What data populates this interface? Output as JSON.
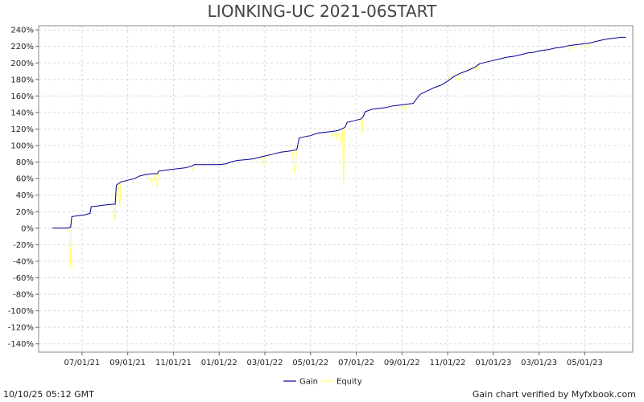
{
  "chart_data": {
    "type": "line",
    "title": "LIONKING-UC 2021-06START",
    "ylim": [
      -150,
      245
    ],
    "y_ticks": [
      240,
      220,
      200,
      180,
      160,
      140,
      120,
      100,
      80,
      60,
      40,
      20,
      0,
      -20,
      -40,
      -60,
      -80,
      -100,
      -120,
      -140
    ],
    "y_tick_suffix": "%",
    "x_ticks": [
      {
        "label": "07/01/21",
        "t": 1.0
      },
      {
        "label": "09/01/21",
        "t": 3.0
      },
      {
        "label": "11/01/21",
        "t": 5.0
      },
      {
        "label": "01/01/22",
        "t": 7.0
      },
      {
        "label": "03/01/22",
        "t": 9.0
      },
      {
        "label": "05/01/22",
        "t": 11.0
      },
      {
        "label": "07/01/22",
        "t": 13.0
      },
      {
        "label": "09/01/22",
        "t": 15.0
      },
      {
        "label": "11/01/22",
        "t": 17.0
      },
      {
        "label": "01/01/23",
        "t": 19.0
      },
      {
        "label": "03/01/23",
        "t": 21.0
      },
      {
        "label": "05/01/23",
        "t": 23.0
      }
    ],
    "grid": true,
    "legend_position": "bottom-center",
    "series": [
      {
        "name": "Gain",
        "color": "#0000aa",
        "points": [
          [
            -0.3,
            0
          ],
          [
            0.3,
            0
          ],
          [
            0.5,
            1
          ],
          [
            0.55,
            14
          ],
          [
            0.8,
            15
          ],
          [
            1.1,
            16
          ],
          [
            1.35,
            18
          ],
          [
            1.4,
            26
          ],
          [
            1.7,
            27
          ],
          [
            2.0,
            28
          ],
          [
            2.35,
            29
          ],
          [
            2.45,
            29
          ],
          [
            2.5,
            52
          ],
          [
            2.6,
            54
          ],
          [
            2.7,
            56
          ],
          [
            3.0,
            58
          ],
          [
            3.3,
            60
          ],
          [
            3.5,
            63
          ],
          [
            3.8,
            65
          ],
          [
            4.1,
            66
          ],
          [
            4.3,
            66
          ],
          [
            4.35,
            69
          ],
          [
            4.6,
            70
          ],
          [
            4.9,
            71
          ],
          [
            5.2,
            72
          ],
          [
            5.5,
            73
          ],
          [
            5.8,
            75
          ],
          [
            5.9,
            77
          ],
          [
            6.2,
            77
          ],
          [
            6.6,
            77
          ],
          [
            7.0,
            77
          ],
          [
            7.3,
            78
          ],
          [
            7.5,
            80
          ],
          [
            7.8,
            82
          ],
          [
            8.2,
            83
          ],
          [
            8.5,
            84
          ],
          [
            8.8,
            86
          ],
          [
            9.1,
            88
          ],
          [
            9.4,
            90
          ],
          [
            9.7,
            92
          ],
          [
            10.0,
            93
          ],
          [
            10.2,
            94
          ],
          [
            10.4,
            95
          ],
          [
            10.5,
            109
          ],
          [
            10.8,
            111
          ],
          [
            11.0,
            112
          ],
          [
            11.3,
            115
          ],
          [
            11.6,
            116
          ],
          [
            11.9,
            117
          ],
          [
            12.2,
            118
          ],
          [
            12.5,
            122
          ],
          [
            12.6,
            128
          ],
          [
            12.9,
            130
          ],
          [
            13.2,
            132
          ],
          [
            13.3,
            135
          ],
          [
            13.4,
            141
          ],
          [
            13.7,
            144
          ],
          [
            14.0,
            145
          ],
          [
            14.3,
            146
          ],
          [
            14.6,
            148
          ],
          [
            14.9,
            149
          ],
          [
            15.2,
            150
          ],
          [
            15.5,
            151
          ],
          [
            15.6,
            155
          ],
          [
            15.8,
            162
          ],
          [
            16.1,
            166
          ],
          [
            16.4,
            170
          ],
          [
            16.7,
            173
          ],
          [
            17.0,
            178
          ],
          [
            17.3,
            184
          ],
          [
            17.6,
            188
          ],
          [
            17.9,
            191
          ],
          [
            18.2,
            195
          ],
          [
            18.4,
            199
          ],
          [
            18.7,
            201
          ],
          [
            19.0,
            203
          ],
          [
            19.3,
            205
          ],
          [
            19.6,
            207
          ],
          [
            19.9,
            208
          ],
          [
            20.2,
            210
          ],
          [
            20.5,
            212
          ],
          [
            20.8,
            213
          ],
          [
            21.1,
            215
          ],
          [
            21.4,
            216
          ],
          [
            21.7,
            218
          ],
          [
            22.0,
            219
          ],
          [
            22.3,
            221
          ],
          [
            22.6,
            222
          ],
          [
            22.9,
            223
          ],
          [
            23.2,
            224
          ],
          [
            23.5,
            226
          ],
          [
            23.8,
            228
          ],
          [
            24.0,
            229
          ],
          [
            24.3,
            230
          ],
          [
            24.6,
            231
          ],
          [
            24.8,
            231
          ]
        ]
      },
      {
        "name": "Equity",
        "color": "#ffff66",
        "points": [
          [
            -0.3,
            0
          ],
          [
            0.3,
            0
          ],
          [
            0.45,
            -4
          ],
          [
            0.5,
            -48
          ],
          [
            0.55,
            14
          ],
          [
            0.8,
            15
          ],
          [
            1.1,
            16
          ],
          [
            1.35,
            18
          ],
          [
            1.4,
            26
          ],
          [
            1.7,
            27
          ],
          [
            2.0,
            28
          ],
          [
            2.35,
            29
          ],
          [
            2.45,
            9
          ],
          [
            2.5,
            52
          ],
          [
            2.6,
            54
          ],
          [
            2.65,
            26
          ],
          [
            2.7,
            56
          ],
          [
            3.0,
            58
          ],
          [
            3.3,
            60
          ],
          [
            3.5,
            63
          ],
          [
            3.8,
            65
          ],
          [
            4.05,
            55
          ],
          [
            4.15,
            64
          ],
          [
            4.3,
            50
          ],
          [
            4.35,
            69
          ],
          [
            4.6,
            70
          ],
          [
            4.9,
            71
          ],
          [
            5.2,
            72
          ],
          [
            5.5,
            73
          ],
          [
            5.8,
            75
          ],
          [
            5.85,
            70
          ],
          [
            5.9,
            77
          ],
          [
            6.2,
            77
          ],
          [
            6.6,
            77
          ],
          [
            7.0,
            77
          ],
          [
            7.3,
            78
          ],
          [
            7.5,
            80
          ],
          [
            7.8,
            82
          ],
          [
            8.2,
            83
          ],
          [
            8.5,
            84
          ],
          [
            8.8,
            86
          ],
          [
            8.9,
            77
          ],
          [
            9.0,
            86
          ],
          [
            9.1,
            88
          ],
          [
            9.4,
            90
          ],
          [
            9.7,
            92
          ],
          [
            10.0,
            93
          ],
          [
            10.2,
            94
          ],
          [
            10.3,
            67
          ],
          [
            10.4,
            95
          ],
          [
            10.5,
            109
          ],
          [
            10.8,
            111
          ],
          [
            11.0,
            112
          ],
          [
            11.3,
            115
          ],
          [
            11.6,
            116
          ],
          [
            11.9,
            117
          ],
          [
            12.0,
            110
          ],
          [
            12.1,
            115
          ],
          [
            12.15,
            108
          ],
          [
            12.25,
            116
          ],
          [
            12.3,
            105
          ],
          [
            12.4,
            118
          ],
          [
            12.45,
            52
          ],
          [
            12.5,
            122
          ],
          [
            12.6,
            128
          ],
          [
            12.9,
            130
          ],
          [
            13.2,
            132
          ],
          [
            13.25,
            113
          ],
          [
            13.3,
            135
          ],
          [
            13.4,
            141
          ],
          [
            13.7,
            144
          ],
          [
            14.0,
            145
          ],
          [
            14.3,
            146
          ],
          [
            14.6,
            148
          ],
          [
            14.9,
            149
          ],
          [
            15.1,
            146
          ],
          [
            15.15,
            143
          ],
          [
            15.2,
            150
          ],
          [
            15.5,
            151
          ],
          [
            15.6,
            155
          ],
          [
            15.8,
            162
          ],
          [
            16.1,
            166
          ],
          [
            16.4,
            170
          ],
          [
            16.7,
            173
          ],
          [
            17.0,
            178
          ],
          [
            17.1,
            184
          ],
          [
            17.3,
            184
          ],
          [
            17.45,
            179
          ],
          [
            17.6,
            188
          ],
          [
            17.9,
            191
          ],
          [
            18.0,
            194
          ],
          [
            18.2,
            195
          ],
          [
            18.3,
            191
          ],
          [
            18.4,
            199
          ],
          [
            18.7,
            201
          ],
          [
            19.0,
            203
          ],
          [
            19.3,
            205
          ],
          [
            19.6,
            207
          ],
          [
            19.9,
            208
          ],
          [
            20.2,
            210
          ],
          [
            20.5,
            212
          ],
          [
            20.8,
            213
          ],
          [
            21.1,
            215
          ],
          [
            21.4,
            216
          ],
          [
            21.7,
            218
          ],
          [
            22.0,
            219
          ],
          [
            22.3,
            221
          ],
          [
            22.35,
            216
          ],
          [
            22.6,
            222
          ],
          [
            22.9,
            223
          ],
          [
            23.1,
            217
          ],
          [
            23.2,
            224
          ],
          [
            23.5,
            226
          ],
          [
            23.8,
            228
          ],
          [
            24.0,
            229
          ],
          [
            24.3,
            230
          ],
          [
            24.6,
            231
          ],
          [
            24.8,
            231
          ]
        ]
      }
    ]
  },
  "footer": {
    "left": "10/10/25 05:12 GMT",
    "right": "Gain chart verified by Myfxbook.com"
  }
}
